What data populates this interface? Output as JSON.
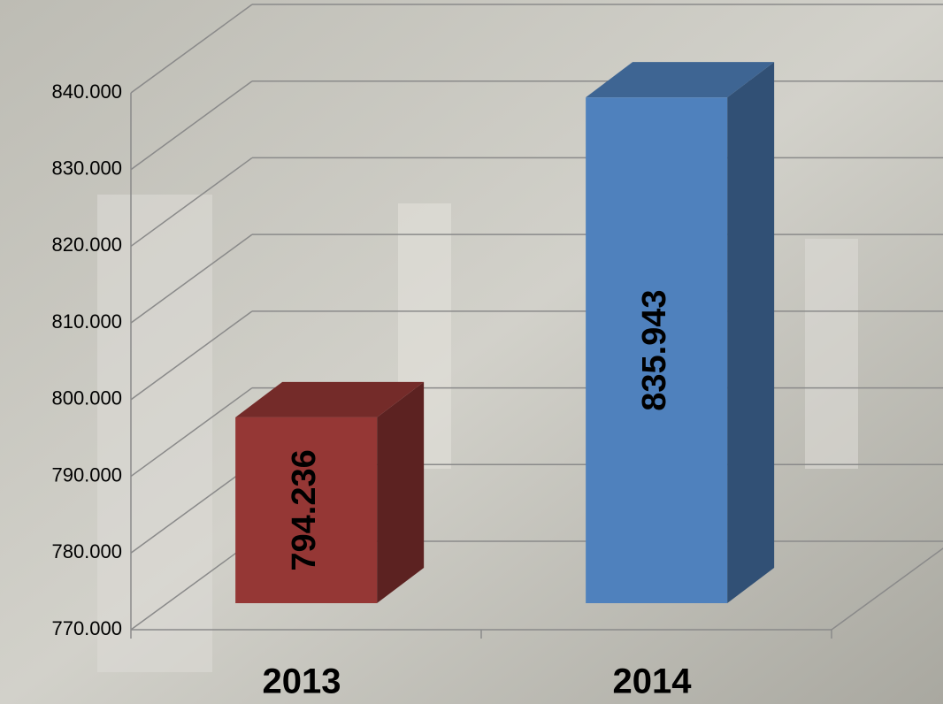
{
  "chart_data": {
    "type": "bar3d",
    "categories": [
      "2013",
      "2014"
    ],
    "values": [
      794236,
      835943
    ],
    "value_labels": [
      "794.236",
      "835.943"
    ],
    "colors": [
      "#953735",
      "#4f81bd"
    ],
    "ylim": [
      770000,
      840000
    ],
    "yticks": [
      {
        "value": 770000,
        "label": "770.000"
      },
      {
        "value": 780000,
        "label": "780.000"
      },
      {
        "value": 790000,
        "label": "790.000"
      },
      {
        "value": 800000,
        "label": "800.000"
      },
      {
        "value": 810000,
        "label": "810.000"
      },
      {
        "value": 820000,
        "label": "820.000"
      },
      {
        "value": 830000,
        "label": "830.000"
      },
      {
        "value": 840000,
        "label": "840.000"
      }
    ],
    "grid": true
  }
}
